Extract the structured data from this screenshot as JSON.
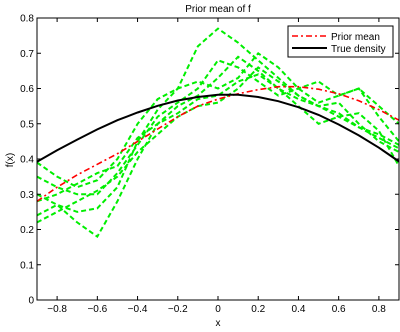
{
  "chart_data": {
    "type": "line",
    "title": "Prior mean of f",
    "xlabel": "x",
    "ylabel": "f(x)",
    "xlim": [
      -0.9,
      0.9
    ],
    "ylim": [
      0,
      0.8
    ],
    "xticks": [
      -0.8,
      -0.6,
      -0.4,
      -0.2,
      0,
      0.2,
      0.4,
      0.6,
      0.8
    ],
    "xtick_labels": [
      "−0.8",
      "−0.6",
      "−0.4",
      "−0.2",
      "0",
      "0.2",
      "0.4",
      "0.6",
      "0.8"
    ],
    "yticks": [
      0,
      0.1,
      0.2,
      0.3,
      0.4,
      0.5,
      0.6,
      0.7,
      0.8
    ],
    "ytick_labels": [
      "0",
      "0.1",
      "0.2",
      "0.3",
      "0.4",
      "0.5",
      "0.6",
      "0.7",
      "0.8"
    ],
    "grid": false,
    "legend_position": "top-right",
    "series": [
      {
        "name": "Prior mean",
        "style": "dash-dot",
        "color": "#ff0000",
        "x": [
          -0.9,
          -0.8,
          -0.7,
          -0.6,
          -0.5,
          -0.4,
          -0.3,
          -0.2,
          -0.1,
          0,
          0.1,
          0.2,
          0.3,
          0.4,
          0.5,
          0.6,
          0.7,
          0.8,
          0.9
        ],
        "y": [
          0.28,
          0.32,
          0.355,
          0.385,
          0.415,
          0.45,
          0.485,
          0.52,
          0.55,
          0.57,
          0.585,
          0.597,
          0.605,
          0.605,
          0.598,
          0.585,
          0.565,
          0.54,
          0.51
        ]
      },
      {
        "name": "True density",
        "style": "solid",
        "color": "#000000",
        "x": [
          -0.9,
          -0.8,
          -0.7,
          -0.6,
          -0.5,
          -0.4,
          -0.3,
          -0.2,
          -0.1,
          0,
          0.1,
          0.2,
          0.3,
          0.4,
          0.5,
          0.6,
          0.7,
          0.8,
          0.9
        ],
        "y": [
          0.392,
          0.425,
          0.455,
          0.484,
          0.51,
          0.532,
          0.551,
          0.566,
          0.576,
          0.582,
          0.582,
          0.576,
          0.564,
          0.547,
          0.525,
          0.498,
          0.467,
          0.432,
          0.393
        ]
      }
    ],
    "samples": {
      "color": "#00ee00",
      "style": "dashed",
      "x": [
        -0.9,
        -0.8,
        -0.7,
        -0.6,
        -0.5,
        -0.4,
        -0.3,
        -0.2,
        -0.1,
        0,
        0.1,
        0.2,
        0.3,
        0.4,
        0.5,
        0.6,
        0.7,
        0.8,
        0.9
      ],
      "curves": [
        [
          0.3,
          0.27,
          0.25,
          0.26,
          0.32,
          0.45,
          0.54,
          0.6,
          0.72,
          0.77,
          0.73,
          0.68,
          0.63,
          0.58,
          0.55,
          0.52,
          0.49,
          0.46,
          0.43
        ],
        [
          0.24,
          0.27,
          0.22,
          0.18,
          0.28,
          0.4,
          0.5,
          0.55,
          0.58,
          0.63,
          0.69,
          0.65,
          0.6,
          0.57,
          0.55,
          0.56,
          0.5,
          0.45,
          0.42
        ],
        [
          0.35,
          0.32,
          0.3,
          0.3,
          0.36,
          0.44,
          0.52,
          0.56,
          0.6,
          0.68,
          0.66,
          0.62,
          0.58,
          0.6,
          0.62,
          0.58,
          0.6,
          0.55,
          0.5
        ],
        [
          0.39,
          0.35,
          0.32,
          0.34,
          0.4,
          0.5,
          0.57,
          0.6,
          0.62,
          0.6,
          0.63,
          0.7,
          0.66,
          0.6,
          0.56,
          0.58,
          0.6,
          0.52,
          0.45
        ],
        [
          0.28,
          0.3,
          0.33,
          0.36,
          0.38,
          0.46,
          0.5,
          0.53,
          0.57,
          0.58,
          0.62,
          0.64,
          0.6,
          0.55,
          0.5,
          0.52,
          0.53,
          0.48,
          0.38
        ],
        [
          0.22,
          0.25,
          0.28,
          0.31,
          0.35,
          0.42,
          0.47,
          0.52,
          0.55,
          0.56,
          0.6,
          0.66,
          0.62,
          0.58,
          0.55,
          0.53,
          0.49,
          0.47,
          0.44
        ]
      ]
    }
  }
}
